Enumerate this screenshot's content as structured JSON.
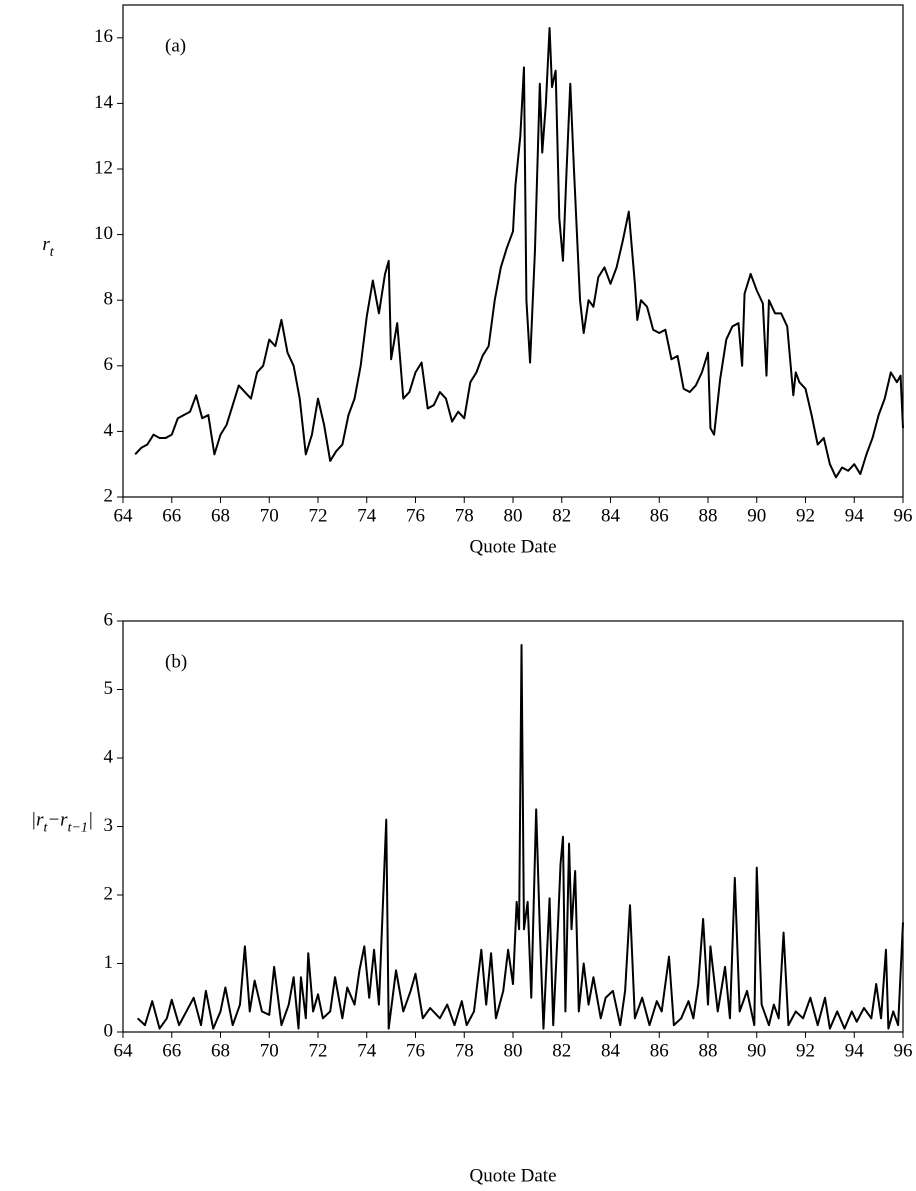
{
  "chart_data": [
    {
      "type": "line",
      "annotation": "(a)",
      "xlabel": "Quote Date",
      "ylabel": [
        {
          "text": "r"
        },
        {
          "text": "t",
          "sub": true
        }
      ],
      "xlim": [
        64,
        96
      ],
      "ylim": [
        2,
        17
      ],
      "xticks": [
        64,
        66,
        68,
        70,
        72,
        74,
        76,
        78,
        80,
        82,
        84,
        86,
        88,
        90,
        92,
        94,
        96
      ],
      "yticks": [
        2,
        4,
        6,
        8,
        10,
        12,
        14,
        16
      ],
      "color": "#000000",
      "x": [
        64.5,
        64.75,
        65,
        65.25,
        65.5,
        65.75,
        66,
        66.25,
        66.5,
        66.75,
        67,
        67.25,
        67.5,
        67.75,
        68,
        68.25,
        68.5,
        68.75,
        69,
        69.25,
        69.5,
        69.75,
        70,
        70.25,
        70.5,
        70.75,
        71,
        71.25,
        71.5,
        71.75,
        72,
        72.25,
        72.5,
        72.75,
        73,
        73.25,
        73.5,
        73.75,
        74,
        74.25,
        74.5,
        74.75,
        74.9,
        75,
        75.25,
        75.5,
        75.75,
        76,
        76.25,
        76.5,
        76.75,
        77,
        77.25,
        77.5,
        77.75,
        78,
        78.25,
        78.5,
        78.75,
        79,
        79.25,
        79.5,
        79.75,
        80,
        80.1,
        80.3,
        80.45,
        80.55,
        80.7,
        80.9,
        81.1,
        81.2,
        81.35,
        81.5,
        81.6,
        81.75,
        81.9,
        82.05,
        82.2,
        82.35,
        82.5,
        82.75,
        82.9,
        83.1,
        83.3,
        83.5,
        83.75,
        84,
        84.25,
        84.5,
        84.75,
        85,
        85.1,
        85.25,
        85.5,
        85.75,
        86,
        86.25,
        86.5,
        86.75,
        87,
        87.25,
        87.5,
        87.75,
        88,
        88.1,
        88.25,
        88.5,
        88.75,
        89,
        89.25,
        89.4,
        89.5,
        89.75,
        90,
        90.25,
        90.4,
        90.5,
        90.75,
        91,
        91.25,
        91.5,
        91.6,
        91.75,
        92,
        92.25,
        92.5,
        92.75,
        93,
        93.25,
        93.5,
        93.75,
        94,
        94.25,
        94.5,
        94.75,
        95,
        95.25,
        95.5,
        95.75,
        95.9,
        96
      ],
      "values": [
        3.3,
        3.5,
        3.6,
        3.9,
        3.8,
        3.8,
        3.9,
        4.4,
        4.5,
        4.6,
        5.1,
        4.4,
        4.5,
        3.3,
        3.9,
        4.2,
        4.8,
        5.4,
        5.2,
        5.0,
        5.8,
        6.0,
        6.8,
        6.6,
        7.4,
        6.4,
        6.0,
        5.0,
        3.3,
        3.9,
        5.0,
        4.2,
        3.1,
        3.4,
        3.6,
        4.5,
        5.0,
        6.0,
        7.5,
        8.6,
        7.6,
        8.8,
        9.2,
        6.2,
        7.3,
        5.0,
        5.2,
        5.8,
        6.1,
        4.7,
        4.8,
        5.2,
        5.0,
        4.3,
        4.6,
        4.4,
        5.5,
        5.8,
        6.3,
        6.6,
        8.0,
        9.0,
        9.6,
        10.1,
        11.5,
        13.0,
        15.1,
        8.0,
        6.1,
        9.5,
        14.6,
        12.5,
        14.0,
        16.3,
        14.5,
        15.0,
        10.5,
        9.2,
        12.0,
        14.6,
        12.0,
        8.0,
        7.0,
        8.0,
        7.8,
        8.7,
        9.0,
        8.5,
        9.0,
        9.8,
        10.7,
        8.5,
        7.4,
        8.0,
        7.8,
        7.1,
        7.0,
        7.1,
        6.2,
        6.3,
        5.3,
        5.2,
        5.4,
        5.8,
        6.4,
        4.1,
        3.9,
        5.6,
        6.8,
        7.2,
        7.3,
        6.0,
        8.2,
        8.8,
        8.3,
        7.9,
        5.7,
        8.0,
        7.6,
        7.6,
        7.2,
        5.1,
        5.8,
        5.5,
        5.3,
        4.5,
        3.6,
        3.8,
        3.0,
        2.6,
        2.9,
        2.8,
        3.0,
        2.7,
        3.3,
        3.8,
        4.5,
        5.0,
        5.8,
        5.5,
        5.7,
        4.1
      ]
    },
    {
      "type": "line",
      "annotation": "(b)",
      "xlabel": "Quote Date",
      "ylabel": [
        {
          "text": "|r"
        },
        {
          "text": "t",
          "sub": true
        },
        {
          "text": "−r"
        },
        {
          "text": "t−1",
          "sub": true
        },
        {
          "text": "|"
        }
      ],
      "xlim": [
        64,
        96
      ],
      "ylim": [
        0,
        6
      ],
      "xticks": [
        64,
        66,
        68,
        70,
        72,
        74,
        76,
        78,
        80,
        82,
        84,
        86,
        88,
        90,
        92,
        94,
        96
      ],
      "yticks": [
        0,
        1,
        2,
        3,
        4,
        5,
        6
      ],
      "color": "#000000",
      "x": [
        64.6,
        64.9,
        65.2,
        65.5,
        65.8,
        66.0,
        66.3,
        66.6,
        66.9,
        67.2,
        67.4,
        67.7,
        68.0,
        68.2,
        68.5,
        68.8,
        69.0,
        69.2,
        69.4,
        69.7,
        70.0,
        70.2,
        70.5,
        70.8,
        71.0,
        71.2,
        71.3,
        71.5,
        71.6,
        71.8,
        72.0,
        72.2,
        72.5,
        72.7,
        73.0,
        73.2,
        73.5,
        73.7,
        73.9,
        74.1,
        74.3,
        74.5,
        74.8,
        74.9,
        75.2,
        75.5,
        75.8,
        76.0,
        76.3,
        76.6,
        77.0,
        77.3,
        77.6,
        77.9,
        78.1,
        78.4,
        78.7,
        78.9,
        79.1,
        79.3,
        79.6,
        79.8,
        80.0,
        80.15,
        80.25,
        80.35,
        80.45,
        80.6,
        80.75,
        80.95,
        81.1,
        81.25,
        81.5,
        81.65,
        81.85,
        81.95,
        82.05,
        82.15,
        82.3,
        82.4,
        82.55,
        82.7,
        82.9,
        83.1,
        83.3,
        83.6,
        83.8,
        84.1,
        84.4,
        84.6,
        84.8,
        85.0,
        85.3,
        85.6,
        85.9,
        86.1,
        86.4,
        86.6,
        86.9,
        87.2,
        87.4,
        87.6,
        87.8,
        88.0,
        88.1,
        88.4,
        88.7,
        88.9,
        89.1,
        89.3,
        89.6,
        89.9,
        90.0,
        90.2,
        90.5,
        90.7,
        90.9,
        91.1,
        91.3,
        91.6,
        91.9,
        92.2,
        92.5,
        92.8,
        93.0,
        93.3,
        93.6,
        93.9,
        94.1,
        94.4,
        94.7,
        94.9,
        95.1,
        95.3,
        95.4,
        95.6,
        95.8,
        96.0
      ],
      "values": [
        0.2,
        0.1,
        0.45,
        0.05,
        0.2,
        0.47,
        0.1,
        0.3,
        0.5,
        0.1,
        0.6,
        0.05,
        0.3,
        0.65,
        0.1,
        0.4,
        1.25,
        0.3,
        0.75,
        0.3,
        0.25,
        0.95,
        0.1,
        0.4,
        0.8,
        0.05,
        0.8,
        0.2,
        1.15,
        0.3,
        0.55,
        0.2,
        0.3,
        0.8,
        0.2,
        0.65,
        0.4,
        0.9,
        1.25,
        0.5,
        1.2,
        0.4,
        3.1,
        0.05,
        0.9,
        0.3,
        0.6,
        0.85,
        0.2,
        0.35,
        0.2,
        0.4,
        0.1,
        0.45,
        0.1,
        0.3,
        1.2,
        0.4,
        1.15,
        0.2,
        0.6,
        1.2,
        0.7,
        1.9,
        1.5,
        5.65,
        1.5,
        1.9,
        0.5,
        3.25,
        1.5,
        0.05,
        1.95,
        0.1,
        1.6,
        2.45,
        2.85,
        0.3,
        2.75,
        1.5,
        2.35,
        0.3,
        1.0,
        0.4,
        0.8,
        0.2,
        0.5,
        0.6,
        0.1,
        0.6,
        1.85,
        0.2,
        0.5,
        0.1,
        0.45,
        0.3,
        1.1,
        0.1,
        0.2,
        0.45,
        0.2,
        0.7,
        1.65,
        0.4,
        1.25,
        0.3,
        0.95,
        0.2,
        2.25,
        0.3,
        0.6,
        0.1,
        2.4,
        0.4,
        0.1,
        0.4,
        0.2,
        1.45,
        0.1,
        0.3,
        0.2,
        0.5,
        0.1,
        0.5,
        0.05,
        0.3,
        0.05,
        0.3,
        0.15,
        0.35,
        0.2,
        0.7,
        0.2,
        1.2,
        0.05,
        0.3,
        0.1,
        1.6
      ]
    }
  ]
}
